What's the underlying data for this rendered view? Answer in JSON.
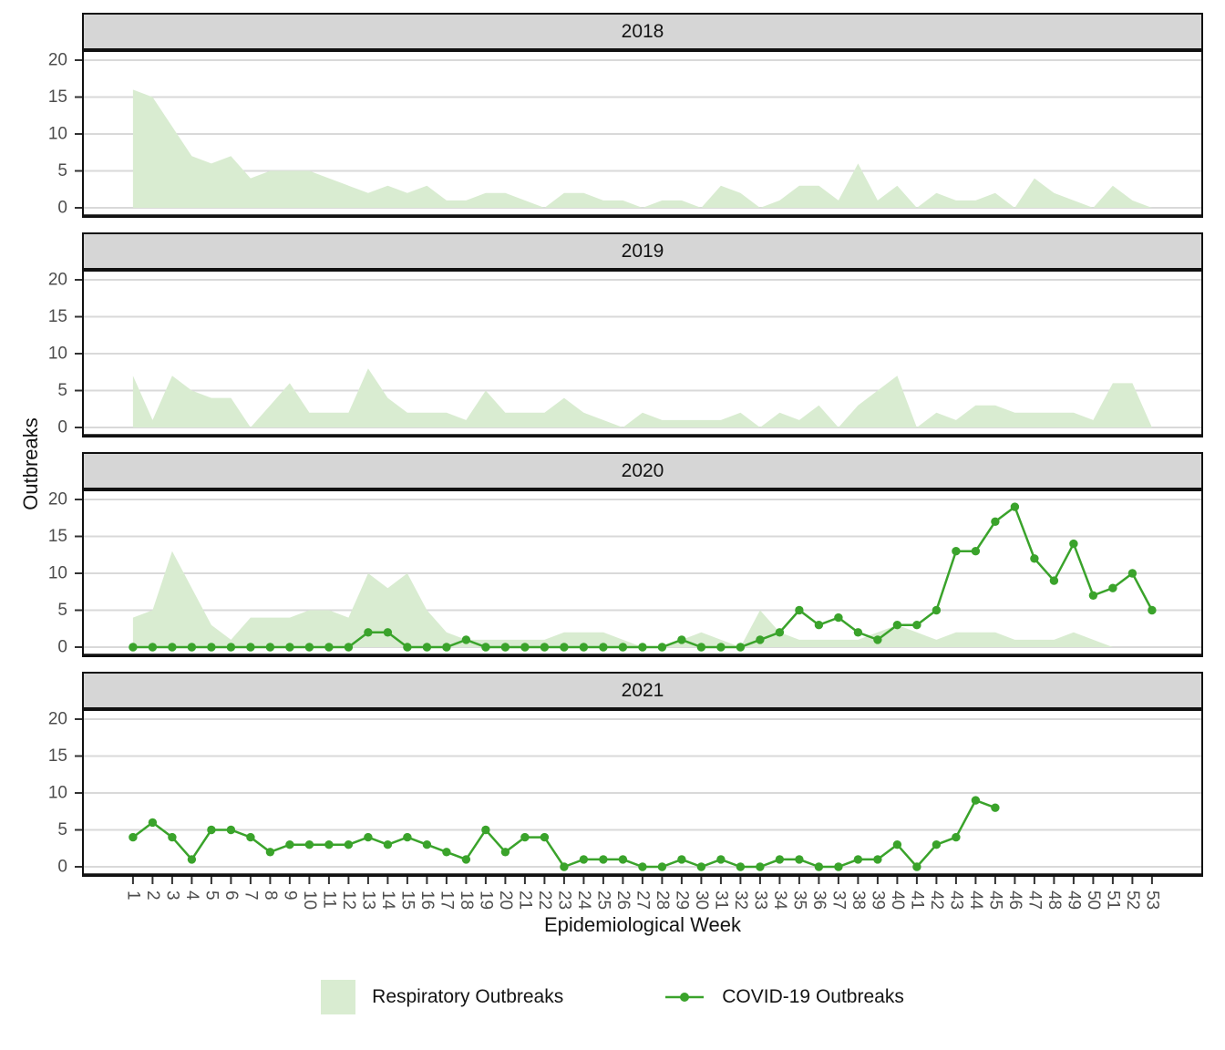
{
  "legend": {
    "items": [
      {
        "label": "Respiratory Outbreaks",
        "type": "area"
      },
      {
        "label": "COVID-19 Outbreaks",
        "type": "line-point"
      }
    ]
  },
  "chart_data": {
    "type": "area",
    "subtype": "faceted area + line-with-points, facet rows by year",
    "title": "",
    "xlabel": "Epidemiological Week",
    "ylabel": "Outbreaks",
    "x_range": [
      1,
      53
    ],
    "ylim": [
      0,
      20
    ],
    "grid": "major horizontal only",
    "legend_position": "bottom",
    "y_ticks": [
      0,
      5,
      10,
      15,
      20
    ],
    "x_tick_labels": [
      "1",
      "2",
      "3",
      "4",
      "5",
      "6",
      "7",
      "8",
      "9",
      "10",
      "11",
      "12",
      "13",
      "14",
      "15",
      "16",
      "17",
      "18",
      "19",
      "20",
      "21",
      "22",
      "23",
      "24",
      "25",
      "26",
      "27",
      "28",
      "29",
      "30",
      "31",
      "32",
      "33",
      "34",
      "35",
      "36",
      "37",
      "38",
      "39",
      "40",
      "41",
      "42",
      "43",
      "44",
      "45",
      "46",
      "47",
      "48",
      "49",
      "50",
      "51",
      "52",
      "53"
    ],
    "series_names": [
      "Respiratory Outbreaks",
      "COVID-19 Outbreaks"
    ],
    "panels": [
      {
        "year": "2018",
        "respiratory": [
          16,
          15,
          11,
          7,
          6,
          7,
          4,
          5,
          5,
          5,
          4,
          3,
          2,
          3,
          2,
          3,
          1,
          1,
          2,
          2,
          1,
          0,
          2,
          2,
          1,
          1,
          0,
          1,
          1,
          0,
          3,
          2,
          0,
          1,
          3,
          3,
          1,
          6,
          1,
          3,
          0,
          2,
          1,
          1,
          2,
          0,
          4,
          2,
          1,
          0,
          3,
          1,
          0
        ],
        "covid": null
      },
      {
        "year": "2019",
        "respiratory": [
          7,
          1,
          7,
          5,
          4,
          4,
          0,
          3,
          6,
          2,
          2,
          2,
          8,
          4,
          2,
          2,
          2,
          1,
          5,
          2,
          2,
          2,
          4,
          2,
          1,
          0,
          2,
          1,
          1,
          1,
          1,
          2,
          0,
          2,
          1,
          3,
          0,
          3,
          5,
          7,
          0,
          2,
          1,
          3,
          3,
          2,
          2,
          2,
          2,
          1,
          6,
          6,
          0
        ],
        "covid": null
      },
      {
        "year": "2020",
        "respiratory": [
          4,
          5,
          13,
          8,
          3,
          1,
          4,
          4,
          4,
          5,
          5,
          4,
          10,
          8,
          10,
          5,
          2,
          1,
          1,
          1,
          1,
          1,
          2,
          2,
          2,
          1,
          0,
          0,
          1,
          2,
          1,
          0,
          5,
          2,
          1,
          1,
          1,
          1,
          2,
          3,
          2,
          1,
          2,
          2,
          2,
          1,
          1,
          1,
          2,
          1,
          0,
          0,
          0
        ],
        "covid": [
          0,
          0,
          0,
          0,
          0,
          0,
          0,
          0,
          0,
          0,
          0,
          0,
          2,
          2,
          0,
          0,
          0,
          1,
          0,
          0,
          0,
          0,
          0,
          0,
          0,
          0,
          0,
          0,
          1,
          0,
          0,
          0,
          1,
          2,
          5,
          3,
          4,
          2,
          1,
          3,
          3,
          5,
          13,
          13,
          17,
          19,
          12,
          9,
          14,
          7,
          8,
          10,
          5
        ]
      },
      {
        "year": "2021",
        "respiratory": null,
        "covid": [
          4,
          6,
          4,
          1,
          5,
          5,
          4,
          2,
          3,
          3,
          3,
          3,
          4,
          3,
          4,
          3,
          2,
          1,
          5,
          2,
          4,
          4,
          0,
          1,
          1,
          1,
          0,
          0,
          1,
          0,
          1,
          0,
          0,
          1,
          1,
          0,
          0,
          1,
          1,
          3,
          0,
          3,
          4,
          9,
          8
        ]
      }
    ],
    "colors": {
      "area": "#d9ecd1",
      "line": "#3aa32b",
      "grid": "#d9d9d9",
      "strip_bg": "#d6d6d6",
      "panel_border": "#111111",
      "tick_text": "#4d4d4d"
    }
  }
}
